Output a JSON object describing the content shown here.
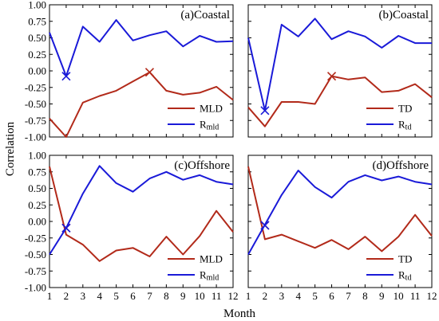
{
  "chart_data": [
    {
      "type": "line",
      "title": "(a)Coastal",
      "x": [
        1,
        2,
        3,
        4,
        5,
        6,
        7,
        8,
        9,
        10,
        11,
        12
      ],
      "xlim": [
        1,
        12
      ],
      "ylim": [
        -1.0,
        1.0
      ],
      "series": [
        {
          "legend_main": "MLD",
          "legend_sub": "",
          "color": "#b22a1a",
          "values": [
            -0.72,
            -1.0,
            -0.48,
            -0.38,
            -0.3,
            -0.16,
            -0.02,
            -0.3,
            -0.36,
            -0.33,
            -0.24,
            -0.44
          ],
          "marker": {
            "x": 7,
            "y": -0.02
          }
        },
        {
          "legend_main": "R",
          "legend_sub": "mld",
          "color": "#1a1ad8",
          "values": [
            0.58,
            -0.08,
            0.67,
            0.44,
            0.77,
            0.46,
            0.54,
            0.6,
            0.37,
            0.53,
            0.44,
            0.45
          ],
          "marker": {
            "x": 2,
            "y": -0.08
          }
        }
      ]
    },
    {
      "type": "line",
      "title": "(b)Coastal",
      "x": [
        1,
        2,
        3,
        4,
        5,
        6,
        7,
        8,
        9,
        10,
        11,
        12
      ],
      "xlim": [
        1,
        12
      ],
      "ylim": [
        -1.0,
        1.0
      ],
      "series": [
        {
          "legend_main": "TD",
          "legend_sub": "",
          "color": "#b22a1a",
          "values": [
            -0.55,
            -0.84,
            -0.47,
            -0.47,
            -0.5,
            -0.08,
            -0.13,
            -0.1,
            -0.32,
            -0.3,
            -0.2,
            -0.4
          ],
          "marker": {
            "x": 6,
            "y": -0.08
          }
        },
        {
          "legend_main": "R",
          "legend_sub": "td",
          "color": "#1a1ad8",
          "values": [
            0.5,
            -0.6,
            0.7,
            0.52,
            0.79,
            0.48,
            0.6,
            0.52,
            0.35,
            0.53,
            0.42,
            0.42
          ],
          "marker": {
            "x": 2,
            "y": -0.6
          }
        }
      ]
    },
    {
      "type": "line",
      "title": "(c)Offshore",
      "x": [
        1,
        2,
        3,
        4,
        5,
        6,
        7,
        8,
        9,
        10,
        11,
        12
      ],
      "xlim": [
        1,
        12
      ],
      "ylim": [
        -1.0,
        1.0
      ],
      "series": [
        {
          "legend_main": "MLD",
          "legend_sub": "",
          "color": "#b22a1a",
          "values": [
            0.83,
            -0.2,
            -0.35,
            -0.6,
            -0.44,
            -0.4,
            -0.53,
            -0.23,
            -0.5,
            -0.22,
            0.16,
            -0.16
          ],
          "marker": {
            "x": 2,
            "y": -0.1
          }
        },
        {
          "legend_main": "R",
          "legend_sub": "mld",
          "color": "#1a1ad8",
          "values": [
            -0.5,
            -0.1,
            0.42,
            0.84,
            0.58,
            0.45,
            0.65,
            0.75,
            0.63,
            0.7,
            0.6,
            0.56
          ],
          "marker": {
            "x": 2,
            "y": -0.1
          }
        }
      ]
    },
    {
      "type": "line",
      "title": "(d)Offshore",
      "x": [
        1,
        2,
        3,
        4,
        5,
        6,
        7,
        8,
        9,
        10,
        11,
        12
      ],
      "xlim": [
        1,
        12
      ],
      "ylim": [
        -1.0,
        1.0
      ],
      "series": [
        {
          "legend_main": "TD",
          "legend_sub": "",
          "color": "#b22a1a",
          "values": [
            0.83,
            -0.27,
            -0.2,
            -0.3,
            -0.4,
            -0.28,
            -0.42,
            -0.23,
            -0.45,
            -0.23,
            0.1,
            -0.22
          ],
          "marker": {
            "x": 2,
            "y": -0.06
          }
        },
        {
          "legend_main": "R",
          "legend_sub": "td",
          "color": "#1a1ad8",
          "values": [
            -0.5,
            -0.05,
            0.4,
            0.77,
            0.52,
            0.36,
            0.6,
            0.7,
            0.62,
            0.68,
            0.6,
            0.56
          ],
          "marker": {
            "x": 2,
            "y": -0.06
          }
        }
      ]
    }
  ],
  "ytick_labels": [
    "-1.00",
    "-0.75",
    "-0.50",
    "-0.25",
    "0.00",
    "0.25",
    "0.50",
    "0.75",
    "1.00"
  ],
  "ytick_values": [
    -1.0,
    -0.75,
    -0.5,
    -0.25,
    0.0,
    0.25,
    0.5,
    0.75,
    1.0
  ],
  "xtick_labels": [
    "1",
    "2",
    "3",
    "4",
    "5",
    "6",
    "7",
    "8",
    "9",
    "10",
    "11",
    "12"
  ],
  "xlabel": "Month",
  "ylabel": "Correlation"
}
